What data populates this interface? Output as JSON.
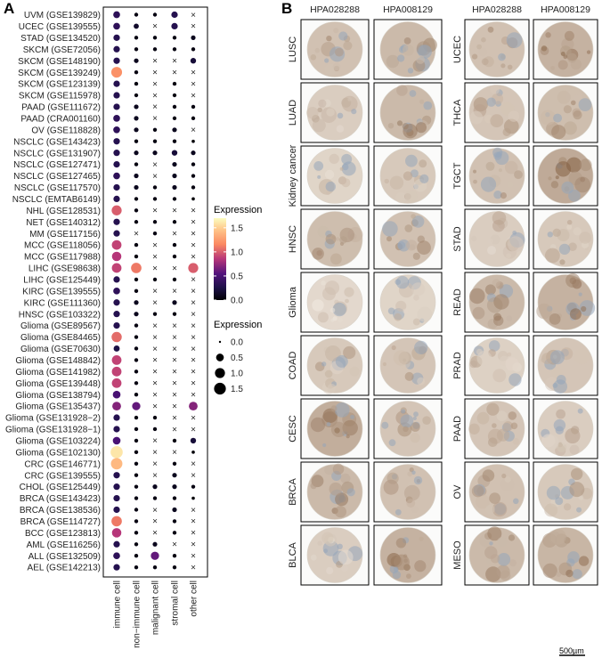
{
  "panels": {
    "a": "A",
    "b": "B"
  },
  "chart_data": {
    "type": "scatter",
    "subtype": "dot-plot",
    "categories_y": [
      "UVM (GSE139829)",
      "UCEC (GSE139555)",
      "STAD (GSE134520)",
      "SKCM (GSE72056)",
      "SKCM (GSE148190)",
      "SKCM (GSE139249)",
      "SKCM (GSE123139)",
      "SKCM (GSE115978)",
      "PAAD (GSE111672)",
      "PAAD (CRA001160)",
      "OV (GSE118828)",
      "NSCLC (GSE143423)",
      "NSCLC (GSE131907)",
      "NSCLC (GSE127471)",
      "NSCLC (GSE127465)",
      "NSCLC (GSE117570)",
      "NSCLC (EMTAB6149)",
      "NHL (GSE128531)",
      "NET (GSE140312)",
      "MM (GSE117156)",
      "MCC (GSE118056)",
      "MCC (GSE117988)",
      "LIHC (GSE98638)",
      "LIHC (GSE125449)",
      "KIRC (GSE139555)",
      "KIRC (GSE111360)",
      "HNSC (GSE103322)",
      "Glioma (GSE89567)",
      "Glioma (GSE84465)",
      "Glioma (GSE70630)",
      "Glioma (GSE148842)",
      "Glioma (GSE141982)",
      "Glioma (GSE139448)",
      "Glioma (GSE138794)",
      "Glioma (GSE135437)",
      "Glioma (GSE131928−2)",
      "Glioma (GSE131928−1)",
      "Glioma (GSE103224)",
      "Glioma (GSE102130)",
      "CRC (GSE146771)",
      "CRC (GSE139555)",
      "CHOL (GSE125449)",
      "BRCA (GSE143423)",
      "BRCA (GSE138536)",
      "BRCA (GSE114727)",
      "BCC (GSE123813)",
      "AML (GSE116256)",
      "ALL (GSE132509)",
      "AEL (GSE142213)"
    ],
    "categories_x": [
      "immune cell",
      "non−immune cell",
      "malignant cell",
      "stromal cell",
      "other cell"
    ],
    "values": [
      [
        0.35,
        0.05,
        0.05,
        0.3,
        null
      ],
      [
        0.35,
        0.15,
        null,
        0.3,
        null
      ],
      [
        0.3,
        0.05,
        0.05,
        0.05,
        0.1
      ],
      [
        0.3,
        0.05,
        0.05,
        0.05,
        0.05
      ],
      [
        0.3,
        0.1,
        null,
        null,
        0.2
      ],
      [
        1.2,
        0.05,
        null,
        null,
        null
      ],
      [
        0.3,
        0.05,
        null,
        0.05,
        null
      ],
      [
        0.3,
        0.05,
        null,
        0.05,
        null
      ],
      [
        0.3,
        0.1,
        null,
        0.05,
        0.05
      ],
      [
        0.35,
        0.1,
        null,
        0.05,
        0.05
      ],
      [
        0.35,
        0.1,
        0.05,
        0.1,
        null
      ],
      [
        0.3,
        0.05,
        0.05,
        0.05,
        0.02
      ],
      [
        0.3,
        0.1,
        0.1,
        0.2,
        0.1
      ],
      [
        0.3,
        0.05,
        null,
        0.1,
        0.05
      ],
      [
        0.35,
        0.1,
        null,
        0.1,
        0.05
      ],
      [
        0.3,
        0.1,
        0.05,
        0.1,
        0.05
      ],
      [
        0.3,
        0.05,
        0.05,
        0.05,
        0.02
      ],
      [
        1.0,
        0.05,
        null,
        null,
        null
      ],
      [
        0.3,
        0.05,
        0.05,
        0.05,
        null
      ],
      [
        0.3,
        null,
        0.05,
        null,
        null
      ],
      [
        0.9,
        0.05,
        null,
        0.05,
        null
      ],
      [
        0.85,
        0.05,
        null,
        0.05,
        null
      ],
      [
        0.9,
        1.1,
        null,
        null,
        1.0
      ],
      [
        0.3,
        0.05,
        0.05,
        0.05,
        null
      ],
      [
        0.35,
        0.05,
        null,
        null,
        null
      ],
      [
        0.3,
        0.1,
        null,
        0.1,
        null
      ],
      [
        0.3,
        0.1,
        0.05,
        0.05,
        null
      ],
      [
        0.3,
        0.05,
        null,
        null,
        null
      ],
      [
        1.05,
        0.05,
        null,
        null,
        null
      ],
      [
        0.25,
        0.05,
        null,
        null,
        null
      ],
      [
        0.9,
        0.05,
        null,
        null,
        null
      ],
      [
        0.9,
        0.05,
        null,
        null,
        null
      ],
      [
        0.9,
        0.05,
        null,
        null,
        null
      ],
      [
        0.5,
        0.05,
        null,
        null,
        null
      ],
      [
        0.7,
        0.6,
        null,
        null,
        0.7
      ],
      [
        0.3,
        0.05,
        0.05,
        null,
        null
      ],
      [
        0.3,
        0.05,
        0.05,
        null,
        null
      ],
      [
        0.5,
        0.05,
        null,
        0.05,
        0.2
      ],
      [
        1.6,
        0.05,
        null,
        null,
        0.02
      ],
      [
        1.4,
        0.05,
        null,
        0.05,
        null
      ],
      [
        0.3,
        0.05,
        null,
        0.1,
        null
      ],
      [
        0.3,
        0.05,
        0.1,
        0.1,
        0.05
      ],
      [
        0.3,
        0.05,
        0.05,
        0.05,
        0.02
      ],
      [
        0.3,
        0.05,
        null,
        0.1,
        null
      ],
      [
        1.1,
        0.05,
        null,
        0.05,
        null
      ],
      [
        0.85,
        0.05,
        null,
        0.05,
        null
      ],
      [
        0.3,
        0.05,
        0.1,
        null,
        null
      ],
      [
        0.35,
        0.05,
        0.6,
        0.05,
        null
      ],
      [
        0.3,
        0.05,
        0.05,
        0.05,
        null
      ]
    ],
    "legend_color": {
      "title": "Expression",
      "ticks": [
        "0.0",
        "0.5",
        "1.0",
        "1.5"
      ],
      "range": [
        0,
        1.7
      ]
    },
    "legend_size": {
      "title": "Expression",
      "ticks": [
        "0.0",
        "0.5",
        "1.0",
        "1.5"
      ]
    },
    "missing_marker": "×"
  },
  "ihc": {
    "left_headers": [
      "HPA028288",
      "HPA008129"
    ],
    "right_headers": [
      "HPA028288",
      "HPA008129"
    ],
    "left_rows": [
      "LUSC",
      "LUAD",
      "Kidney cancer",
      "HNSC",
      "Glioma",
      "COAD",
      "CESC",
      "BRCA",
      "BLCA"
    ],
    "right_rows": [
      "UCEC",
      "THCA",
      "TGCT",
      "STAD",
      "READ",
      "PRAD",
      "PAAD",
      "OV",
      "MESO"
    ],
    "intensity_left": [
      [
        0.45,
        0.55
      ],
      [
        0.3,
        0.55
      ],
      [
        0.2,
        0.35
      ],
      [
        0.5,
        0.45
      ],
      [
        0.15,
        0.2
      ],
      [
        0.35,
        0.4
      ],
      [
        0.7,
        0.4
      ],
      [
        0.55,
        0.45
      ],
      [
        0.3,
        0.65
      ]
    ],
    "intensity_right": [
      [
        0.45,
        0.65
      ],
      [
        0.4,
        0.5
      ],
      [
        0.45,
        0.75
      ],
      [
        0.3,
        0.35
      ],
      [
        0.55,
        0.65
      ],
      [
        0.25,
        0.4
      ],
      [
        0.4,
        0.3
      ],
      [
        0.45,
        0.35
      ],
      [
        0.55,
        0.6
      ]
    ],
    "scale_bar": "500µm"
  }
}
